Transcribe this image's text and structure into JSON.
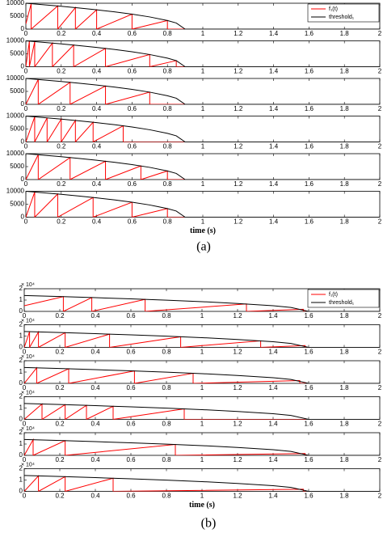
{
  "captions": [
    "(a)",
    "(b)"
  ],
  "chart_data": [
    {
      "type": "line",
      "xlim": [
        0,
        2
      ],
      "xticks": [
        0,
        0.2,
        0.4,
        0.6,
        0.8,
        1,
        1.2,
        1.4,
        1.6,
        1.8,
        2
      ],
      "ylim": [
        0,
        10000
      ],
      "yticks": [
        0,
        5000,
        10000
      ],
      "legend": "upper right",
      "series": [
        {
          "name": "f₁(t)",
          "color": "#ff0000",
          "x": [
            0,
            0.03,
            0.03,
            0.18,
            0.18,
            0.28,
            0.28,
            0.4,
            0.4,
            0.6,
            0.6,
            0.8,
            0.8,
            2
          ],
          "values": [
            2000,
            9830,
            0,
            8940,
            0,
            8300,
            0,
            7450,
            0,
            5770,
            0,
            3330,
            0,
            0
          ]
        },
        {
          "name": "threshold₁",
          "color": "#000000",
          "x": [
            0,
            0.1,
            0.2,
            0.3,
            0.4,
            0.5,
            0.6,
            0.7,
            0.8,
            0.85,
            0.9,
            2
          ],
          "values": [
            10000,
            9430,
            8820,
            8160,
            7450,
            6670,
            5770,
            4710,
            3330,
            2360,
            0,
            0
          ]
        }
      ]
    },
    {
      "type": "line",
      "xlim": [
        0,
        2
      ],
      "xticks": [
        0,
        0.2,
        0.4,
        0.6,
        0.8,
        1,
        1.2,
        1.4,
        1.6,
        1.8,
        2
      ],
      "ylim": [
        0,
        10000
      ],
      "yticks": [
        0,
        5000,
        10000
      ],
      "series": [
        {
          "color": "#ff0000",
          "x": [
            0,
            0.02,
            0.02,
            0.05,
            0.05,
            0.15,
            0.15,
            0.27,
            0.27,
            0.45,
            0.45,
            0.7,
            0.7,
            0.85,
            0.85,
            2
          ],
          "values": [
            0,
            9890,
            0,
            9720,
            0,
            9130,
            0,
            8370,
            0,
            7070,
            0,
            4710,
            0,
            2360,
            0,
            0
          ]
        },
        {
          "color": "#000000",
          "x": [
            0,
            0.1,
            0.2,
            0.3,
            0.4,
            0.5,
            0.6,
            0.7,
            0.8,
            0.85,
            0.9,
            2
          ],
          "values": [
            10000,
            9430,
            8820,
            8160,
            7450,
            6670,
            5770,
            4710,
            3330,
            2360,
            0,
            0
          ]
        }
      ]
    },
    {
      "type": "line",
      "xlim": [
        0,
        2
      ],
      "xticks": [
        0,
        0.2,
        0.4,
        0.6,
        0.8,
        1,
        1.2,
        1.4,
        1.6,
        1.8,
        2
      ],
      "ylim": [
        0,
        10000
      ],
      "yticks": [
        0,
        5000,
        10000
      ],
      "series": [
        {
          "color": "#ff0000",
          "x": [
            0,
            0.07,
            0.07,
            0.25,
            0.25,
            0.45,
            0.45,
            0.7,
            0.7,
            2
          ],
          "values": [
            0,
            9600,
            0,
            8500,
            0,
            7070,
            0,
            4710,
            0,
            0
          ]
        },
        {
          "color": "#000000",
          "x": [
            0,
            0.1,
            0.2,
            0.3,
            0.4,
            0.5,
            0.6,
            0.7,
            0.8,
            0.85,
            0.9,
            2
          ],
          "values": [
            10000,
            9430,
            8820,
            8160,
            7450,
            6670,
            5770,
            4710,
            3330,
            2360,
            0,
            0
          ]
        }
      ]
    },
    {
      "type": "line",
      "xlim": [
        0,
        2
      ],
      "xticks": [
        0,
        0.2,
        0.4,
        0.6,
        0.8,
        1,
        1.2,
        1.4,
        1.6,
        1.8,
        2
      ],
      "ylim": [
        0,
        10000
      ],
      "yticks": [
        0,
        5000,
        10000
      ],
      "series": [
        {
          "color": "#ff0000",
          "x": [
            0,
            0.05,
            0.05,
            0.12,
            0.12,
            0.2,
            0.2,
            0.28,
            0.28,
            0.38,
            0.38,
            0.55,
            0.55,
            2
          ],
          "values": [
            0,
            9720,
            0,
            9310,
            0,
            8820,
            0,
            8300,
            0,
            7600,
            0,
            6240,
            0,
            0
          ]
        },
        {
          "color": "#000000",
          "x": [
            0,
            0.1,
            0.2,
            0.3,
            0.4,
            0.5,
            0.6,
            0.7,
            0.8,
            0.85,
            0.9,
            2
          ],
          "values": [
            10000,
            9430,
            8820,
            8160,
            7450,
            6670,
            5770,
            4710,
            3330,
            2360,
            0,
            0
          ]
        }
      ]
    },
    {
      "type": "line",
      "xlim": [
        0,
        2
      ],
      "xticks": [
        0,
        0.2,
        0.4,
        0.6,
        0.8,
        1,
        1.2,
        1.4,
        1.6,
        1.8,
        2
      ],
      "ylim": [
        0,
        10000
      ],
      "yticks": [
        0,
        5000,
        10000
      ],
      "series": [
        {
          "color": "#ff0000",
          "x": [
            0,
            0.07,
            0.07,
            0.25,
            0.25,
            0.45,
            0.45,
            0.65,
            0.65,
            0.8,
            0.8,
            2
          ],
          "values": [
            0,
            9600,
            0,
            8500,
            0,
            7070,
            0,
            5270,
            0,
            3330,
            0,
            0
          ]
        },
        {
          "color": "#000000",
          "x": [
            0,
            0.1,
            0.2,
            0.3,
            0.4,
            0.5,
            0.6,
            0.7,
            0.8,
            0.85,
            0.9,
            2
          ],
          "values": [
            10000,
            9430,
            8820,
            8160,
            7450,
            6670,
            5770,
            4710,
            3330,
            2360,
            0,
            0
          ]
        }
      ]
    },
    {
      "type": "line",
      "xlim": [
        0,
        2
      ],
      "xticks": [
        0,
        0.2,
        0.4,
        0.6,
        0.8,
        1,
        1.2,
        1.4,
        1.6,
        1.8,
        2
      ],
      "ylim": [
        0,
        10000
      ],
      "yticks": [
        0,
        5000,
        10000
      ],
      "xlabel": "time (s)",
      "series": [
        {
          "color": "#ff0000",
          "x": [
            0,
            0.05,
            0.05,
            0.18,
            0.18,
            0.38,
            0.38,
            0.6,
            0.6,
            0.8,
            0.8,
            2
          ],
          "values": [
            0,
            9720,
            0,
            8940,
            0,
            7600,
            0,
            5770,
            0,
            3330,
            0,
            0
          ]
        },
        {
          "color": "#000000",
          "x": [
            0,
            0.1,
            0.2,
            0.3,
            0.4,
            0.5,
            0.6,
            0.7,
            0.8,
            0.85,
            0.9,
            2
          ],
          "values": [
            10000,
            9430,
            8820,
            8160,
            7450,
            6670,
            5770,
            4710,
            3330,
            2360,
            0,
            0
          ]
        }
      ]
    },
    {
      "type": "line",
      "xlim": [
        0,
        2
      ],
      "xticks": [
        0,
        0.2,
        0.4,
        0.6,
        0.8,
        1,
        1.2,
        1.4,
        1.6,
        1.8,
        2
      ],
      "ylim": [
        0,
        2
      ],
      "yticks": [
        0,
        1,
        2
      ],
      "y_offset_label": "× 10⁴",
      "legend": "upper right",
      "series": [
        {
          "name": "f₁(t)",
          "color": "#ff0000",
          "x": [
            0,
            0.22,
            0.22,
            0.38,
            0.38,
            0.68,
            0.68,
            1.25,
            1.25,
            1.57,
            1.57,
            2
          ],
          "values": [
            0.5,
            1.3,
            0,
            1.22,
            0,
            1.06,
            0,
            0.66,
            0,
            0.19,
            0,
            0
          ]
        },
        {
          "name": "threshold₁",
          "color": "#000000",
          "x": [
            0,
            0.2,
            0.4,
            0.6,
            0.8,
            1,
            1.2,
            1.4,
            1.5,
            1.6,
            2
          ],
          "values": [
            1.4,
            1.31,
            1.21,
            1.11,
            0.99,
            0.86,
            0.7,
            0.5,
            0.35,
            0,
            0
          ]
        }
      ]
    },
    {
      "type": "line",
      "xlim": [
        0,
        2
      ],
      "xticks": [
        0,
        0.2,
        0.4,
        0.6,
        0.8,
        1,
        1.2,
        1.4,
        1.6,
        1.8,
        2
      ],
      "ylim": [
        0,
        2
      ],
      "yticks": [
        0,
        1,
        2
      ],
      "y_offset_label": "× 10⁴",
      "series": [
        {
          "color": "#ff0000",
          "x": [
            0,
            0.03,
            0.03,
            0.08,
            0.08,
            0.23,
            0.23,
            0.48,
            0.48,
            0.88,
            0.88,
            1.33,
            1.33,
            1.58,
            1.58,
            2
          ],
          "values": [
            0,
            1.39,
            0,
            1.36,
            0,
            1.3,
            0,
            1.17,
            0,
            0.94,
            0,
            0.58,
            0,
            0.16,
            0,
            0
          ]
        },
        {
          "color": "#000000",
          "x": [
            0,
            0.2,
            0.4,
            0.6,
            0.8,
            1,
            1.2,
            1.4,
            1.5,
            1.6,
            2
          ],
          "values": [
            1.4,
            1.31,
            1.21,
            1.11,
            0.99,
            0.86,
            0.7,
            0.5,
            0.35,
            0,
            0
          ]
        }
      ]
    },
    {
      "type": "line",
      "xlim": [
        0,
        2
      ],
      "xticks": [
        0,
        0.2,
        0.4,
        0.6,
        0.8,
        1,
        1.2,
        1.4,
        1.6,
        1.8,
        2
      ],
      "ylim": [
        0,
        2
      ],
      "yticks": [
        0,
        1,
        2
      ],
      "y_offset_label": "× 10⁴",
      "series": [
        {
          "color": "#ff0000",
          "x": [
            0,
            0.07,
            0.07,
            0.25,
            0.25,
            0.62,
            0.62,
            0.95,
            0.95,
            1.55,
            1.55,
            2
          ],
          "values": [
            0,
            1.37,
            0,
            1.29,
            0,
            1.1,
            0,
            0.89,
            0,
            0.25,
            0,
            0
          ]
        },
        {
          "color": "#000000",
          "x": [
            0,
            0.2,
            0.4,
            0.6,
            0.8,
            1,
            1.2,
            1.4,
            1.5,
            1.6,
            2
          ],
          "values": [
            1.4,
            1.31,
            1.21,
            1.11,
            0.99,
            0.86,
            0.7,
            0.5,
            0.35,
            0,
            0
          ]
        }
      ]
    },
    {
      "type": "line",
      "xlim": [
        0,
        2
      ],
      "xticks": [
        0,
        0.2,
        0.4,
        0.6,
        0.8,
        1,
        1.2,
        1.4,
        1.6,
        1.8,
        2
      ],
      "ylim": [
        0,
        2
      ],
      "yticks": [
        0,
        1,
        2
      ],
      "y_offset_label": "× 10⁴",
      "series": [
        {
          "color": "#ff0000",
          "x": [
            0,
            0.1,
            0.1,
            0.23,
            0.23,
            0.35,
            0.35,
            0.5,
            0.5,
            0.9,
            0.9,
            1.6,
            2
          ],
          "values": [
            0,
            1.36,
            0,
            1.3,
            0,
            1.24,
            0,
            1.16,
            0,
            0.93,
            0,
            0,
            0
          ]
        },
        {
          "color": "#000000",
          "x": [
            0,
            0.2,
            0.4,
            0.6,
            0.8,
            1,
            1.2,
            1.4,
            1.5,
            1.6,
            2
          ],
          "values": [
            1.4,
            1.31,
            1.21,
            1.11,
            0.99,
            0.86,
            0.7,
            0.5,
            0.35,
            0,
            0
          ]
        }
      ]
    },
    {
      "type": "line",
      "xlim": [
        0,
        2
      ],
      "xticks": [
        0,
        0.2,
        0.4,
        0.6,
        0.8,
        1,
        1.2,
        1.4,
        1.6,
        1.8,
        2
      ],
      "ylim": [
        0,
        2
      ],
      "yticks": [
        0,
        1,
        2
      ],
      "y_offset_label": "× 10⁴",
      "series": [
        {
          "color": "#ff0000",
          "x": [
            0,
            0.05,
            0.05,
            0.23,
            0.23,
            0.85,
            0.85,
            1.58,
            1.58,
            2
          ],
          "values": [
            0,
            1.38,
            0,
            1.3,
            0,
            0.96,
            0,
            0.16,
            0,
            0
          ]
        },
        {
          "color": "#000000",
          "x": [
            0,
            0.2,
            0.4,
            0.6,
            0.8,
            1,
            1.2,
            1.4,
            1.5,
            1.6,
            2
          ],
          "values": [
            1.4,
            1.31,
            1.21,
            1.11,
            0.99,
            0.86,
            0.7,
            0.5,
            0.35,
            0,
            0
          ]
        }
      ]
    },
    {
      "type": "line",
      "xlim": [
        0,
        2
      ],
      "xticks": [
        0,
        0.2,
        0.4,
        0.6,
        0.8,
        1,
        1.2,
        1.4,
        1.6,
        1.8,
        2
      ],
      "ylim": [
        0,
        2
      ],
      "yticks": [
        0,
        1,
        2
      ],
      "y_offset_label": "× 10⁴",
      "xlabel": "time (s)",
      "series": [
        {
          "color": "#ff0000",
          "x": [
            0,
            0.08,
            0.08,
            0.23,
            0.23,
            0.5,
            0.5,
            1.57,
            1.57,
            2
          ],
          "values": [
            0,
            1.36,
            0,
            1.3,
            0,
            1.16,
            0,
            0.19,
            0,
            0
          ]
        },
        {
          "color": "#000000",
          "x": [
            0,
            0.2,
            0.4,
            0.6,
            0.8,
            1,
            1.2,
            1.4,
            1.5,
            1.6,
            2
          ],
          "values": [
            1.4,
            1.31,
            1.21,
            1.11,
            0.99,
            0.86,
            0.7,
            0.5,
            0.35,
            0,
            0
          ]
        }
      ]
    }
  ]
}
